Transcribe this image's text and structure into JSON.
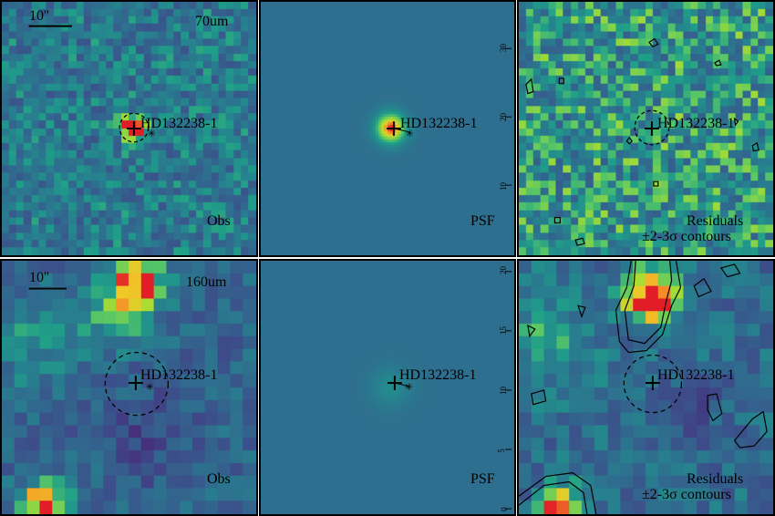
{
  "panels": [
    {
      "id": "p70-obs",
      "row": 0,
      "col": 0,
      "kind": "obs",
      "band_label": "70um",
      "scalebar_label": "10''",
      "corner_label": "Obs",
      "corner_label2": "",
      "target_label": "HD132238-1",
      "beam_size": "small"
    },
    {
      "id": "p70-psf",
      "row": 0,
      "col": 1,
      "kind": "psf",
      "band_label": "",
      "scalebar_label": "",
      "corner_label": "PSF",
      "corner_label2": "",
      "target_label": "HD132238-1",
      "beam_size": "small"
    },
    {
      "id": "p70-res",
      "row": 0,
      "col": 2,
      "kind": "res",
      "band_label": "",
      "scalebar_label": "",
      "corner_label": "Residuals",
      "corner_label2": "±2-3σ contours",
      "target_label": "HD132238-1",
      "beam_size": "small"
    },
    {
      "id": "p160-obs",
      "row": 1,
      "col": 0,
      "kind": "obs",
      "band_label": "160um",
      "scalebar_label": "10''",
      "corner_label": "Obs",
      "corner_label2": "",
      "target_label": "HD132238-1",
      "beam_size": "large"
    },
    {
      "id": "p160-psf",
      "row": 1,
      "col": 1,
      "kind": "psf",
      "band_label": "",
      "scalebar_label": "",
      "corner_label": "PSF",
      "corner_label2": "",
      "target_label": "HD132238-1",
      "beam_size": "large"
    },
    {
      "id": "p160-res",
      "row": 1,
      "col": 2,
      "kind": "res",
      "band_label": "",
      "scalebar_label": "",
      "corner_label": "Residuals",
      "corner_label2": "±2-3σ contours",
      "target_label": "HD132238-1",
      "beam_size": "large"
    }
  ],
  "psf_axis_ticks": {
    "row0": [
      "30",
      "20",
      "10"
    ],
    "row1": [
      "20",
      "15",
      "10",
      "5",
      "0"
    ]
  },
  "colors": {
    "background_psf": "#3a78c8",
    "frame": "#000000"
  }
}
